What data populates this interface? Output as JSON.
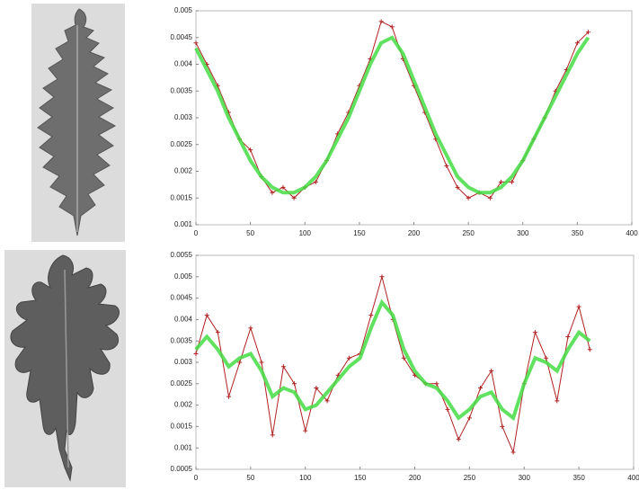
{
  "chart_data": [
    {
      "type": "line",
      "x": [
        0,
        10,
        20,
        30,
        40,
        50,
        60,
        70,
        80,
        90,
        100,
        110,
        120,
        130,
        140,
        150,
        160,
        170,
        180,
        190,
        200,
        210,
        220,
        230,
        240,
        250,
        260,
        270,
        280,
        290,
        300,
        310,
        320,
        330,
        340,
        350,
        360
      ],
      "series": [
        {
          "color": "#b02020",
          "marker": "+",
          "values": [
            0.0044,
            0.004,
            0.0036,
            0.0031,
            0.0026,
            0.0024,
            0.0019,
            0.0016,
            0.0017,
            0.0015,
            0.0017,
            0.0018,
            0.0022,
            0.0027,
            0.0031,
            0.0036,
            0.0041,
            0.0048,
            0.0047,
            0.0041,
            0.0036,
            0.0031,
            0.0026,
            0.0021,
            0.0017,
            0.0015,
            0.0016,
            0.0015,
            0.0018,
            0.0018,
            0.0022,
            0.0026,
            0.003,
            0.0035,
            0.0039,
            0.0044,
            0.0046
          ]
        },
        {
          "color": "#44dd44",
          "values": [
            0.0043,
            0.0039,
            0.0035,
            0.003,
            0.0026,
            0.0022,
            0.0019,
            0.0017,
            0.0016,
            0.0016,
            0.0017,
            0.0019,
            0.0022,
            0.0026,
            0.003,
            0.0035,
            0.004,
            0.0044,
            0.0045,
            0.0042,
            0.0037,
            0.0032,
            0.0027,
            0.0023,
            0.0019,
            0.0017,
            0.0016,
            0.0016,
            0.0017,
            0.0019,
            0.0022,
            0.0026,
            0.003,
            0.0034,
            0.0038,
            0.0042,
            0.0045
          ]
        }
      ],
      "xlim": [
        0,
        400
      ],
      "xticks": [
        0,
        50,
        100,
        150,
        200,
        250,
        300,
        350,
        400
      ],
      "ylim": [
        0.001,
        0.005
      ],
      "yticks": [
        0.001,
        0.0015,
        0.002,
        0.0025,
        0.003,
        0.0035,
        0.004,
        0.0045,
        0.005
      ],
      "grid": false
    },
    {
      "type": "line",
      "x": [
        0,
        10,
        20,
        30,
        40,
        50,
        60,
        70,
        80,
        90,
        100,
        110,
        120,
        130,
        140,
        150,
        160,
        170,
        180,
        190,
        200,
        210,
        220,
        230,
        240,
        250,
        260,
        270,
        280,
        290,
        300,
        310,
        320,
        330,
        340,
        350,
        360
      ],
      "series": [
        {
          "color": "#b02020",
          "marker": "+",
          "values": [
            0.0032,
            0.0041,
            0.0037,
            0.0022,
            0.003,
            0.0038,
            0.003,
            0.0013,
            0.0029,
            0.0025,
            0.0014,
            0.0024,
            0.0021,
            0.0027,
            0.0031,
            0.0032,
            0.0041,
            0.005,
            0.004,
            0.0031,
            0.0027,
            0.0025,
            0.0025,
            0.0019,
            0.0012,
            0.0017,
            0.0024,
            0.0028,
            0.0015,
            0.0009,
            0.0025,
            0.0037,
            0.0031,
            0.0021,
            0.0036,
            0.0043,
            0.0033
          ]
        },
        {
          "color": "#44dd44",
          "values": [
            0.0033,
            0.0036,
            0.0033,
            0.0029,
            0.0031,
            0.0032,
            0.0028,
            0.0022,
            0.0024,
            0.0023,
            0.0019,
            0.002,
            0.0023,
            0.0026,
            0.0029,
            0.0031,
            0.0038,
            0.0044,
            0.0041,
            0.0033,
            0.0028,
            0.0025,
            0.0024,
            0.0021,
            0.0017,
            0.0019,
            0.0022,
            0.0023,
            0.0019,
            0.0017,
            0.0025,
            0.0031,
            0.003,
            0.0028,
            0.0033,
            0.0037,
            0.0035
          ]
        }
      ],
      "xlim": [
        0,
        400
      ],
      "xticks": [
        0,
        50,
        100,
        150,
        200,
        250,
        300,
        350,
        400
      ],
      "ylim": [
        0.0005,
        0.0055
      ],
      "yticks": [
        0.0005,
        0.001,
        0.0015,
        0.002,
        0.0025,
        0.003,
        0.0035,
        0.004,
        0.0045,
        0.005,
        0.0055
      ],
      "grid": false
    }
  ]
}
